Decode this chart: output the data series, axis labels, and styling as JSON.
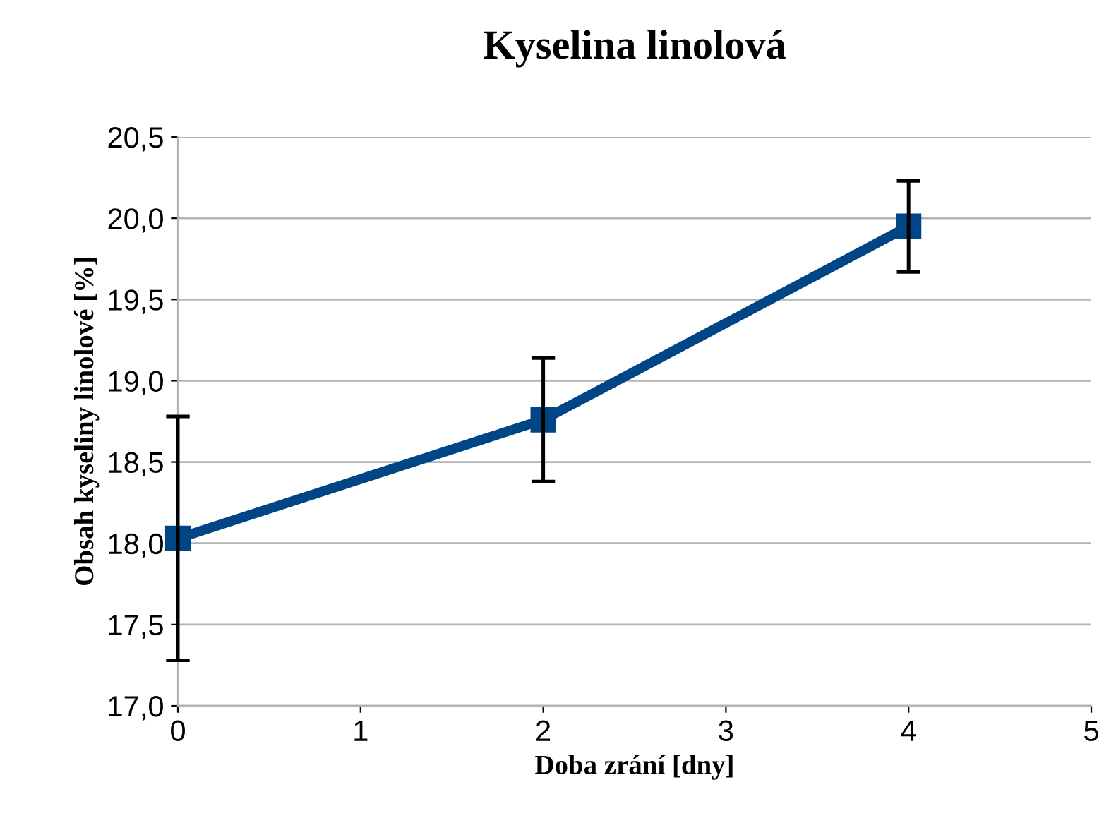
{
  "chart_data": {
    "type": "line",
    "title": "Kyselina linolová",
    "xlabel": "Doba zrání [dny]",
    "ylabel": "Obsah kyseliny linolové [%]",
    "x": [
      0,
      2,
      4
    ],
    "series": [
      {
        "color": "#004586",
        "values": [
          18.03,
          18.76,
          19.95
        ],
        "errors": [
          0.75,
          0.38,
          0.28
        ]
      }
    ],
    "xlim": [
      0,
      5
    ],
    "xticks": [
      0,
      1,
      2,
      3,
      4,
      5
    ],
    "ylim": [
      17.0,
      20.5
    ],
    "yticks": [
      {
        "value": 17.0,
        "label": "17,0"
      },
      {
        "value": 17.5,
        "label": "17,5"
      },
      {
        "value": 18.0,
        "label": "18,0"
      },
      {
        "value": 18.5,
        "label": "18,5"
      },
      {
        "value": 19.0,
        "label": "19,0"
      },
      {
        "value": 19.5,
        "label": "19,5"
      },
      {
        "value": 20.0,
        "label": "20,0"
      },
      {
        "value": 20.5,
        "label": "20,5"
      }
    ],
    "grid": "y",
    "marker": "square",
    "line_style": "solid",
    "legend": false
  }
}
